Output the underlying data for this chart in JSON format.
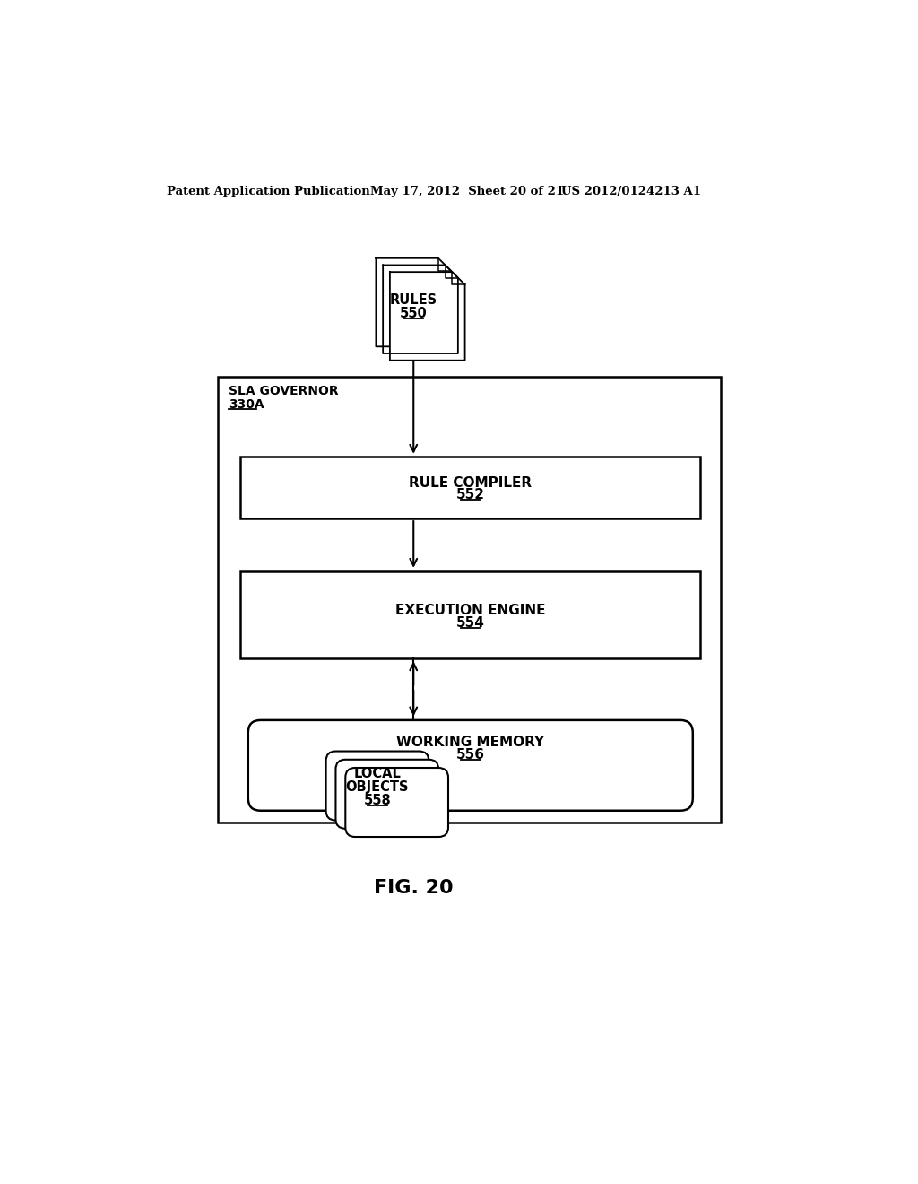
{
  "background_color": "#ffffff",
  "header_text": "Patent Application Publication",
  "header_date": "May 17, 2012  Sheet 20 of 21",
  "header_patent": "US 2012/0124213 A1",
  "figure_label": "FIG. 20",
  "sla_governor_label": "SLA GOVERNOR",
  "sla_governor_num": "330A",
  "rule_compiler_label": "RULE COMPILER",
  "rule_compiler_num": "552",
  "execution_engine_label": "EXECUTION ENGINE",
  "execution_engine_num": "554",
  "working_memory_label": "WORKING MEMORY",
  "working_memory_num": "556",
  "local_objects_label1": "LOCAL",
  "local_objects_label2": "OBJECTS",
  "local_objects_num": "558",
  "rules_label": "RULES",
  "rules_num": "550",
  "line_color": "#000000",
  "text_color": "#000000"
}
